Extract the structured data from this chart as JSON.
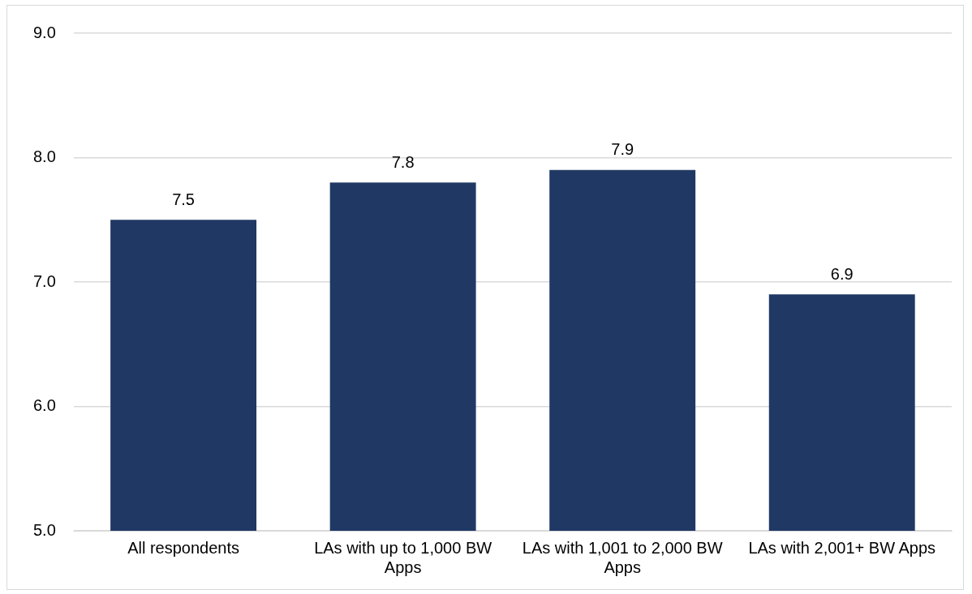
{
  "chart_data": {
    "type": "bar",
    "categories": [
      "All respondents",
      "LAs with up to 1,000 BW Apps",
      "LAs with 1,001 to 2,000 BW Apps",
      "LAs with 2,001+ BW Apps"
    ],
    "values": [
      7.5,
      7.8,
      7.9,
      6.9
    ],
    "color": "#203864",
    "ylim": [
      5,
      9
    ],
    "yticks": [
      {
        "value": 5,
        "label": "5.0"
      },
      {
        "value": 6,
        "label": "6.0"
      },
      {
        "value": 7,
        "label": "7.0"
      },
      {
        "value": 8,
        "label": "8.0"
      },
      {
        "value": 9,
        "label": "9.0"
      }
    ],
    "grid": "y",
    "legend": false,
    "data_labels": true
  }
}
